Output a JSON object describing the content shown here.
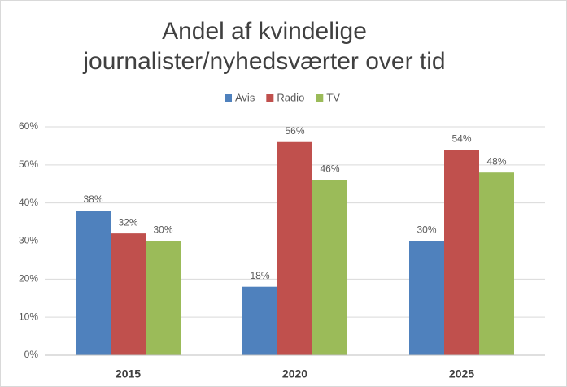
{
  "chart_data": {
    "type": "bar",
    "title": [
      "Andel af kvindelige",
      "journalister/nyhedsværter over tid"
    ],
    "categories": [
      "2015",
      "2020",
      "2025"
    ],
    "series": [
      {
        "name": "Avis",
        "color": "#4f81bd",
        "values": [
          38,
          18,
          30
        ],
        "value_labels": [
          "38%",
          "18%",
          "30%"
        ]
      },
      {
        "name": "Radio",
        "color": "#c0504d",
        "values": [
          32,
          56,
          54
        ],
        "value_labels": [
          "32%",
          "56%",
          "54%"
        ]
      },
      {
        "name": "TV",
        "color": "#9bbb59",
        "values": [
          30,
          46,
          48
        ],
        "value_labels": [
          "30%",
          "46%",
          "48%"
        ]
      }
    ],
    "ylim": [
      0,
      60
    ],
    "yticks": [
      {
        "value": 0,
        "label": "0%"
      },
      {
        "value": 10,
        "label": "10%"
      },
      {
        "value": 20,
        "label": "20%"
      },
      {
        "value": 30,
        "label": "30%"
      },
      {
        "value": 40,
        "label": "40%"
      },
      {
        "value": 50,
        "label": "50%"
      },
      {
        "value": 60,
        "label": "60%"
      }
    ],
    "grid": true,
    "legend": "top"
  }
}
